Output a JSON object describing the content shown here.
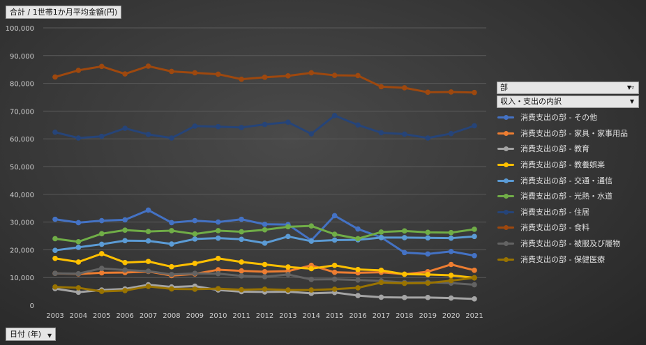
{
  "value_field": "合計 / 1世帯1か月平均金額(円)",
  "date_field": "日付 (年)",
  "legend": {
    "field_label": "部",
    "sub_label": "収入・支出の内訳",
    "filter_icon": "filter-icon",
    "dropdown_icon": "chevron-down-icon"
  },
  "chart_data": {
    "type": "line",
    "title": "",
    "xlabel": "",
    "ylabel": "合計 / 1世帯1か月平均金額(円)",
    "ylim": [
      0,
      100000
    ],
    "yticks": [
      "0",
      "10,000",
      "20,000",
      "30,000",
      "40,000",
      "50,000",
      "60,000",
      "70,000",
      "80,000",
      "90,000",
      "100,000"
    ],
    "categories": [
      "2003",
      "2004",
      "2005",
      "2006",
      "2007",
      "2008",
      "2009",
      "2010",
      "2011",
      "2012",
      "2013",
      "2014",
      "2015",
      "2016",
      "2017",
      "2018",
      "2019",
      "2020",
      "2021"
    ],
    "series": [
      {
        "name": "消費支出の部 - その他",
        "color": "#4472c4",
        "values": [
          31000,
          29800,
          30500,
          30800,
          34300,
          29800,
          30500,
          30000,
          31000,
          29200,
          29100,
          23400,
          32300,
          27500,
          24500,
          19000,
          18500,
          19400,
          17900
        ]
      },
      {
        "name": "消費支出の部 - 家具・家事用品",
        "color": "#ed7d31",
        "values": [
          11500,
          11300,
          11700,
          11800,
          12200,
          10700,
          11300,
          12800,
          12400,
          12100,
          12300,
          14400,
          11900,
          11700,
          11900,
          11200,
          12100,
          14700,
          12600
        ]
      },
      {
        "name": "消費支出の部 - 教育",
        "color": "#a5a5a5",
        "values": [
          6000,
          4700,
          5500,
          5900,
          7400,
          6600,
          6900,
          5500,
          4900,
          4800,
          4900,
          4300,
          4600,
          3500,
          2900,
          2800,
          2800,
          2600,
          2300
        ]
      },
      {
        "name": "消費支出の部 - 教養娯楽",
        "color": "#ffc000",
        "values": [
          16900,
          15600,
          18600,
          15400,
          15800,
          13900,
          15100,
          16900,
          15600,
          14700,
          13800,
          13200,
          14400,
          12900,
          12600,
          11200,
          11100,
          10800,
          9900
        ]
      },
      {
        "name": "消費支出の部 - 交通・通信",
        "color": "#5b9bd5",
        "values": [
          19800,
          20900,
          22000,
          23300,
          23200,
          22100,
          23900,
          24200,
          23800,
          22400,
          24800,
          23100,
          23500,
          23600,
          24400,
          24400,
          24300,
          24200,
          24800
        ]
      },
      {
        "name": "消費支出の部 - 光熱・水道",
        "color": "#70ad47",
        "values": [
          24000,
          22900,
          25800,
          27100,
          26600,
          26900,
          25700,
          26900,
          26500,
          27200,
          28300,
          28600,
          25600,
          24000,
          26400,
          26800,
          26300,
          26200,
          27400
        ]
      },
      {
        "name": "消費支出の部 - 住居",
        "color": "#264478",
        "values": [
          62400,
          60300,
          60900,
          63800,
          61600,
          60300,
          64600,
          64400,
          64100,
          65200,
          66000,
          61800,
          68400,
          65000,
          62200,
          61700,
          60300,
          61900,
          64700
        ]
      },
      {
        "name": "消費支出の部 - 食料",
        "color": "#9e480e",
        "values": [
          82300,
          84700,
          86100,
          83400,
          86200,
          84300,
          83800,
          83300,
          81500,
          82200,
          82700,
          83800,
          82900,
          82800,
          78800,
          78400,
          76800,
          76900,
          76700
        ]
      },
      {
        "name": "消費支出の部 - 被服及び履物",
        "color": "#636363",
        "values": [
          11500,
          11400,
          13300,
          12700,
          12300,
          11100,
          11500,
          11400,
          10600,
          10300,
          11100,
          9300,
          9400,
          9100,
          8800,
          8200,
          8300,
          8000,
          7400
        ]
      },
      {
        "name": "消費支出の部 - 保健医療",
        "color": "#997300",
        "values": [
          6600,
          6300,
          5000,
          5300,
          6800,
          5900,
          5800,
          6000,
          5600,
          5800,
          5500,
          5500,
          5800,
          6300,
          8200,
          7900,
          8000,
          8900,
          9900
        ]
      }
    ]
  }
}
